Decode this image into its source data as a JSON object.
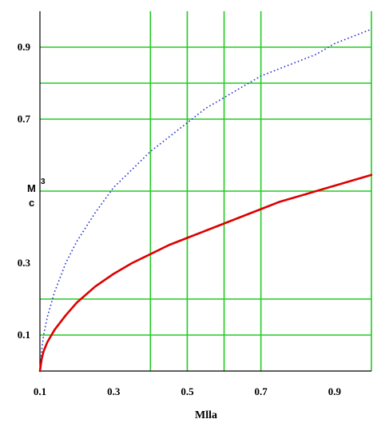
{
  "chart_data": {
    "type": "line",
    "xlabel": "Mlla",
    "ylabel_top": "M",
    "ylabel_sup": "3",
    "ylabel_bottom": "c",
    "xlim": [
      0.1,
      1.0
    ],
    "ylim": [
      0.0,
      1.0
    ],
    "x_ticks": [
      {
        "value": 0.1,
        "label": "0.1"
      },
      {
        "value": 0.3,
        "label": "0.3"
      },
      {
        "value": 0.5,
        "label": "0.5"
      },
      {
        "value": 0.7,
        "label": "0.7"
      },
      {
        "value": 0.9,
        "label": "0.9"
      }
    ],
    "y_ticks": [
      {
        "value": 0.1,
        "label": "0.1"
      },
      {
        "value": 0.3,
        "label": "0.3"
      },
      {
        "value": 0.7,
        "label": "0.7"
      },
      {
        "value": 0.9,
        "label": "0.9"
      }
    ],
    "x_gridlines": [
      0.4,
      0.5,
      0.6,
      0.7,
      1.0
    ],
    "y_gridlines": [
      0.1,
      0.2,
      0.5,
      0.7,
      0.8,
      0.9
    ],
    "grid_color": "#22cc22",
    "series": [
      {
        "style": "dotted",
        "color": "#2233cc",
        "x": [
          0.1,
          0.105,
          0.11,
          0.12,
          0.14,
          0.17,
          0.2,
          0.25,
          0.3,
          0.35,
          0.4,
          0.45,
          0.5,
          0.55,
          0.6,
          0.65,
          0.7,
          0.75,
          0.8,
          0.85,
          0.9,
          0.95,
          1.0
        ],
        "y": [
          0.0,
          0.06,
          0.1,
          0.15,
          0.22,
          0.3,
          0.36,
          0.44,
          0.51,
          0.56,
          0.61,
          0.65,
          0.69,
          0.73,
          0.76,
          0.79,
          0.82,
          0.84,
          0.86,
          0.88,
          0.91,
          0.93,
          0.95
        ]
      },
      {
        "style": "solid",
        "color": "#dd0000",
        "x": [
          0.1,
          0.105,
          0.11,
          0.12,
          0.14,
          0.17,
          0.2,
          0.25,
          0.3,
          0.35,
          0.4,
          0.45,
          0.5,
          0.55,
          0.6,
          0.65,
          0.7,
          0.75,
          0.8,
          0.85,
          0.9,
          0.95,
          1.0
        ],
        "y": [
          0.0,
          0.035,
          0.055,
          0.08,
          0.115,
          0.155,
          0.19,
          0.235,
          0.27,
          0.3,
          0.325,
          0.35,
          0.37,
          0.39,
          0.41,
          0.43,
          0.45,
          0.47,
          0.485,
          0.5,
          0.515,
          0.53,
          0.545
        ]
      }
    ]
  }
}
